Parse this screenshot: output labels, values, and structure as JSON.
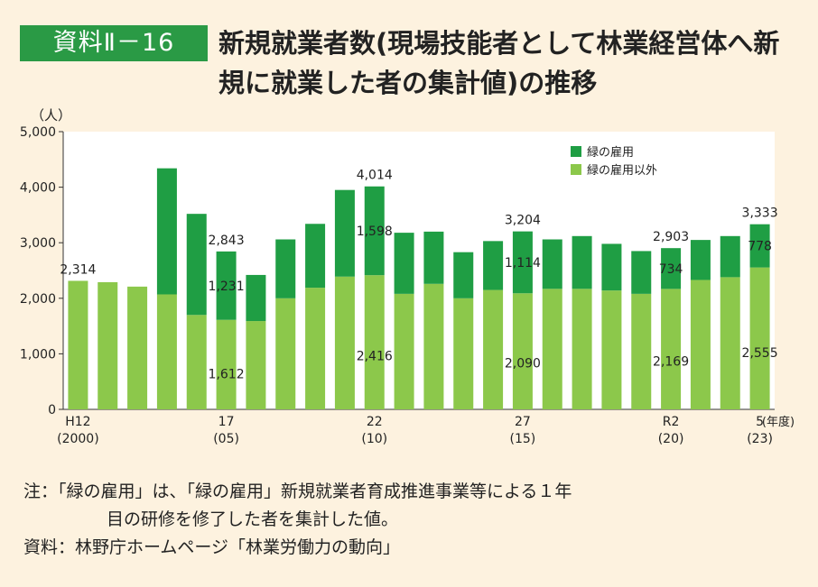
{
  "header": {
    "badge": "資料Ⅱ－16",
    "title": "新規就業者数(現場技能者として林業経営体へ新規に就業した者の集計値)の推移"
  },
  "notes": {
    "note_line1": "注：「緑の雇用」は、「緑の雇用」新規就業者育成推進事業等による１年",
    "note_line2": "目の研修を修了した者を集計した値。",
    "source": "資料：林野庁ホームページ「林業労働力の動向」"
  },
  "colors": {
    "green_koyo": "#1f9e44",
    "other": "#8cc84b",
    "plot_bg": "#ffffff"
  },
  "chart_data": {
    "type": "bar",
    "stacked": true,
    "yunit": "（人）",
    "ylim": [
      0,
      5000
    ],
    "yticks": [
      "0",
      "1,000",
      "2,000",
      "3,000",
      "4,000",
      "5,000"
    ],
    "grid": false,
    "legend_position": "top-right",
    "categories": [
      "2000",
      "2001",
      "2002",
      "2003",
      "2004",
      "2005",
      "2006",
      "2007",
      "2008",
      "2009",
      "2010",
      "2011",
      "2012",
      "2013",
      "2014",
      "2015",
      "2016",
      "2017",
      "2018",
      "2019",
      "2020",
      "2021",
      "2022",
      "2023"
    ],
    "x_tick_labels": [
      {
        "index": 0,
        "line1": "H12",
        "line2": "(2000)"
      },
      {
        "index": 5,
        "line1": "17",
        "line2": "(05)"
      },
      {
        "index": 10,
        "line1": "22",
        "line2": "(10)"
      },
      {
        "index": 15,
        "line1": "27",
        "line2": "(15)"
      },
      {
        "index": 20,
        "line1": "R2",
        "line2": "(20)"
      },
      {
        "index": 23,
        "line1": "5",
        "line2": "(23)"
      }
    ],
    "x_unit": "(年度)",
    "series": [
      {
        "name": "緑の雇用以外",
        "color": "#8cc84b",
        "values": [
          2314,
          2290,
          2210,
          2070,
          1700,
          1612,
          1590,
          2000,
          2190,
          2390,
          2416,
          2080,
          2260,
          2000,
          2150,
          2090,
          2170,
          2170,
          2140,
          2080,
          2169,
          2330,
          2380,
          2555
        ]
      },
      {
        "name": "緑の雇用",
        "color": "#1f9e44",
        "values": [
          0,
          0,
          0,
          2270,
          1820,
          1231,
          830,
          1060,
          1150,
          1560,
          1598,
          1100,
          940,
          830,
          880,
          1114,
          890,
          950,
          840,
          770,
          734,
          720,
          740,
          778
        ]
      }
    ],
    "totals": [
      2314,
      2290,
      2210,
      4340,
      3520,
      2843,
      2420,
      3060,
      3340,
      3950,
      4014,
      3180,
      3200,
      2830,
      3030,
      3204,
      3060,
      3120,
      2980,
      2850,
      2903,
      3050,
      3120,
      3333
    ],
    "data_labels": [
      {
        "index": 0,
        "total": "2,314"
      },
      {
        "index": 5,
        "total": "2,843",
        "koyo": "1,231",
        "other": "1,612"
      },
      {
        "index": 10,
        "total": "4,014",
        "koyo": "1,598",
        "other": "2,416"
      },
      {
        "index": 15,
        "total": "3,204",
        "koyo": "1,114",
        "other": "2,090"
      },
      {
        "index": 20,
        "total": "2,903",
        "koyo": "734",
        "other": "2,169"
      },
      {
        "index": 23,
        "total": "3,333",
        "koyo": "778",
        "other": "2,555"
      }
    ]
  }
}
